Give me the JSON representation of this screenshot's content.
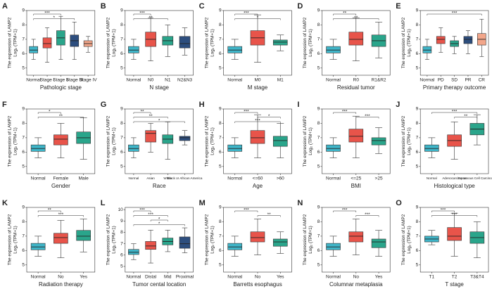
{
  "chart_data": [
    {
      "type": "box",
      "panel": "A",
      "x_label": "Pathologic stage",
      "y_label": [
        "The expression of LAMP2",
        "Log₂ (TPM+1)"
      ],
      "ylim": [
        4.5,
        9
      ],
      "yticks": [
        5,
        6,
        7,
        8,
        9
      ],
      "categories": [
        "Normal",
        "Stage I",
        "Stage II",
        "Stage III",
        "Stage IV"
      ],
      "boxes": [
        {
          "color": "#3fb5c8",
          "low": 5.6,
          "q1": 6.05,
          "median": 6.25,
          "q3": 6.5,
          "high": 7.0
        },
        {
          "color": "#e8544a",
          "low": 5.4,
          "q1": 6.4,
          "median": 6.7,
          "q3": 7.1,
          "high": 7.8
        },
        {
          "color": "#2aa58b",
          "low": 5.6,
          "q1": 6.6,
          "median": 7.1,
          "q3": 7.6,
          "high": 8.6
        },
        {
          "color": "#2d4e7e",
          "low": 5.6,
          "q1": 6.5,
          "median": 6.9,
          "q3": 7.3,
          "high": 8.2
        },
        {
          "color": "#f2a68a",
          "low": 6.1,
          "q1": 6.5,
          "median": 6.7,
          "q3": 6.9,
          "high": 7.2
        }
      ],
      "significance": [
        {
          "from": 0,
          "to": 2,
          "label": "***"
        },
        {
          "from": 0,
          "to": 3,
          "label": "*"
        }
      ]
    },
    {
      "type": "box",
      "panel": "B",
      "x_label": "N stage",
      "y_label": [
        "The expression of LAMP2",
        "Log₂ (TPM+1)"
      ],
      "ylim": [
        4.5,
        9
      ],
      "yticks": [
        5,
        6,
        7,
        8,
        9
      ],
      "categories": [
        "Normal",
        "N0",
        "N1",
        "N2&N3"
      ],
      "boxes": [
        {
          "color": "#3fb5c8",
          "low": 5.6,
          "q1": 6.05,
          "median": 6.25,
          "q3": 6.5,
          "high": 7.0
        },
        {
          "color": "#e8544a",
          "low": 5.5,
          "q1": 6.5,
          "median": 7.0,
          "q3": 7.5,
          "high": 8.5
        },
        {
          "color": "#2aa58b",
          "low": 5.8,
          "q1": 6.6,
          "median": 6.9,
          "q3": 7.2,
          "high": 8.0
        },
        {
          "color": "#2d4e7e",
          "low": 5.9,
          "q1": 6.4,
          "median": 6.7,
          "q3": 7.2,
          "high": 7.8
        }
      ],
      "significance": [
        {
          "from": 0,
          "to": 1,
          "label": "***"
        },
        {
          "from": 0,
          "to": 2,
          "label": "**"
        }
      ]
    },
    {
      "type": "box",
      "panel": "C",
      "x_label": "M stage",
      "y_label": [
        "The expression of LAMP2",
        "Log₂ (TPM+1)"
      ],
      "ylim": [
        4.5,
        9
      ],
      "yticks": [
        5,
        6,
        7,
        8,
        9
      ],
      "categories": [
        "Normal",
        "M0",
        "M1"
      ],
      "boxes": [
        {
          "color": "#3fb5c8",
          "low": 5.6,
          "q1": 6.05,
          "median": 6.25,
          "q3": 6.5,
          "high": 7.0
        },
        {
          "color": "#e8544a",
          "low": 5.4,
          "q1": 6.6,
          "median": 7.1,
          "q3": 7.6,
          "high": 8.7
        },
        {
          "color": "#2aa58b",
          "low": 6.2,
          "q1": 6.6,
          "median": 6.8,
          "q3": 6.95,
          "high": 7.3
        }
      ],
      "significance": [
        {
          "from": 0,
          "to": 1,
          "label": "***"
        },
        {
          "from": 0,
          "to": 2,
          "label": "*"
        }
      ]
    },
    {
      "type": "box",
      "panel": "D",
      "x_label": "Residual tumor",
      "y_label": [
        "The expression of LAMP2",
        "Log₂ (TPM+1)"
      ],
      "ylim": [
        4.5,
        9
      ],
      "yticks": [
        5,
        6,
        7,
        8,
        9
      ],
      "categories": [
        "Normal",
        "R0",
        "R1&R2"
      ],
      "boxes": [
        {
          "color": "#3fb5c8",
          "low": 5.6,
          "q1": 6.05,
          "median": 6.25,
          "q3": 6.5,
          "high": 7.0
        },
        {
          "color": "#e8544a",
          "low": 5.5,
          "q1": 6.6,
          "median": 7.0,
          "q3": 7.5,
          "high": 8.5
        },
        {
          "color": "#2aa58b",
          "low": 5.7,
          "q1": 6.5,
          "median": 6.9,
          "q3": 7.3,
          "high": 8.2
        }
      ],
      "significance": [
        {
          "from": 0,
          "to": 1,
          "label": "**"
        },
        {
          "from": 0,
          "to": 2,
          "label": "**"
        }
      ]
    },
    {
      "type": "box",
      "panel": "E",
      "x_label": "Primary therapy outcome",
      "y_label": [
        "The expression of LAMP2",
        "Log₂ (TPM+1)"
      ],
      "ylim": [
        4.5,
        9
      ],
      "yticks": [
        5,
        6,
        7,
        8,
        9
      ],
      "categories": [
        "Normal",
        "PD",
        "SD",
        "PR",
        "CR"
      ],
      "boxes": [
        {
          "color": "#3fb5c8",
          "low": 5.6,
          "q1": 6.05,
          "median": 6.25,
          "q3": 6.5,
          "high": 7.0
        },
        {
          "color": "#e8544a",
          "low": 6.1,
          "q1": 6.7,
          "median": 7.0,
          "q3": 7.2,
          "high": 7.8
        },
        {
          "color": "#2aa58b",
          "low": 6.0,
          "q1": 6.5,
          "median": 6.7,
          "q3": 6.9,
          "high": 7.2
        },
        {
          "color": "#2d4e7e",
          "low": 6.0,
          "q1": 6.7,
          "median": 7.0,
          "q3": 7.2,
          "high": 7.6
        },
        {
          "color": "#f2a68a",
          "low": 5.8,
          "q1": 6.6,
          "median": 7.0,
          "q3": 7.4,
          "high": 8.4
        }
      ],
      "significance": [
        {
          "from": 0,
          "to": 4,
          "label": "***"
        }
      ]
    },
    {
      "type": "box",
      "panel": "F",
      "x_label": "Gender",
      "y_label": [
        "The expression of LAMP2",
        "Log₂ (TPM+1)"
      ],
      "ylim": [
        4.5,
        9
      ],
      "yticks": [
        5,
        6,
        7,
        8,
        9
      ],
      "categories": [
        "Normal",
        "Female",
        "Male"
      ],
      "boxes": [
        {
          "color": "#3fb5c8",
          "low": 5.6,
          "q1": 6.05,
          "median": 6.25,
          "q3": 6.5,
          "high": 7.0
        },
        {
          "color": "#e8544a",
          "low": 5.6,
          "q1": 6.5,
          "median": 6.9,
          "q3": 7.2,
          "high": 8.0
        },
        {
          "color": "#2aa58b",
          "low": 5.5,
          "q1": 6.6,
          "median": 7.0,
          "q3": 7.4,
          "high": 8.4
        }
      ],
      "significance": [
        {
          "from": 0,
          "to": 1,
          "label": "*"
        },
        {
          "from": 0,
          "to": 2,
          "label": "**"
        }
      ]
    },
    {
      "type": "box",
      "panel": "G",
      "x_label": "Race",
      "y_label": [
        "The expression of LAMP2",
        "Log₂ (TPM+1)"
      ],
      "ylim": [
        4.5,
        9
      ],
      "yticks": [
        5,
        6,
        7,
        8,
        9
      ],
      "categories": [
        "Normal",
        "Asian",
        "White",
        "Black or African America"
      ],
      "boxes": [
        {
          "color": "#3fb5c8",
          "low": 5.6,
          "q1": 6.05,
          "median": 6.25,
          "q3": 6.5,
          "high": 7.0
        },
        {
          "color": "#e8544a",
          "low": 6.0,
          "q1": 6.7,
          "median": 7.3,
          "q3": 7.5,
          "high": 8.0
        },
        {
          "color": "#2aa58b",
          "low": 5.5,
          "q1": 6.6,
          "median": 6.9,
          "q3": 7.2,
          "high": 8.1
        },
        {
          "color": "#2d4e7e",
          "low": 6.5,
          "q1": 6.8,
          "median": 7.0,
          "q3": 7.1,
          "high": 7.5
        }
      ],
      "significance": [
        {
          "from": 0,
          "to": 1,
          "label": "**"
        },
        {
          "from": 0,
          "to": 2,
          "label": "**"
        },
        {
          "from": 0,
          "to": 3,
          "label": "*"
        }
      ]
    },
    {
      "type": "box",
      "panel": "H",
      "x_label": "Age",
      "y_label": [
        "The expression of LAMP2",
        "Log₂ (TPM+1)"
      ],
      "ylim": [
        4.5,
        9
      ],
      "yticks": [
        5,
        6,
        7,
        8,
        9
      ],
      "categories": [
        "Normal",
        "<=60",
        ">60"
      ],
      "boxes": [
        {
          "color": "#3fb5c8",
          "low": 5.6,
          "q1": 6.05,
          "median": 6.25,
          "q3": 6.5,
          "high": 7.0
        },
        {
          "color": "#e8544a",
          "low": 5.6,
          "q1": 6.6,
          "median": 7.0,
          "q3": 7.5,
          "high": 8.6
        },
        {
          "color": "#2aa58b",
          "low": 5.6,
          "q1": 6.4,
          "median": 6.8,
          "q3": 7.1,
          "high": 8.0
        }
      ],
      "significance": [
        {
          "from": 0,
          "to": 1,
          "label": "***"
        },
        {
          "from": 1,
          "to": 2,
          "label": "*"
        },
        {
          "from": 0,
          "to": 2,
          "label": "***"
        }
      ]
    },
    {
      "type": "box",
      "panel": "I",
      "x_label": "BMI",
      "y_label": [
        "The expression of LAMP2",
        "Log₂ (TPM+1)"
      ],
      "ylim": [
        4.5,
        9
      ],
      "yticks": [
        5,
        6,
        7,
        8,
        9
      ],
      "categories": [
        "Normal",
        "<=25",
        ">25"
      ],
      "boxes": [
        {
          "color": "#3fb5c8",
          "low": 5.6,
          "q1": 6.05,
          "median": 6.25,
          "q3": 6.5,
          "high": 7.0
        },
        {
          "color": "#e8544a",
          "low": 5.6,
          "q1": 6.7,
          "median": 7.1,
          "q3": 7.6,
          "high": 8.5
        },
        {
          "color": "#2aa58b",
          "low": 5.9,
          "q1": 6.5,
          "median": 6.8,
          "q3": 7.0,
          "high": 7.7
        }
      ],
      "significance": [
        {
          "from": 0,
          "to": 1,
          "label": "***"
        },
        {
          "from": 1,
          "to": 2,
          "label": "***"
        }
      ]
    },
    {
      "type": "box",
      "panel": "J",
      "x_label": "Histological type",
      "y_label": [
        "The expression of LAMP2",
        "Log₂ (TPM+1)"
      ],
      "ylim": [
        4.5,
        9
      ],
      "yticks": [
        5,
        6,
        7,
        8,
        9
      ],
      "categories": [
        "Normal",
        "Adenocarcinoma",
        "Squamous Cell Carcinoma"
      ],
      "boxes": [
        {
          "color": "#3fb5c8",
          "low": 5.6,
          "q1": 6.05,
          "median": 6.25,
          "q3": 6.5,
          "high": 7.0
        },
        {
          "color": "#e8544a",
          "low": 5.5,
          "q1": 6.4,
          "median": 6.8,
          "q3": 7.2,
          "high": 8.1
        },
        {
          "color": "#2aa58b",
          "low": 6.5,
          "q1": 7.2,
          "median": 7.6,
          "q3": 8.0,
          "high": 8.6
        }
      ],
      "significance": [
        {
          "from": 0,
          "to": 2,
          "label": "***"
        },
        {
          "from": 1,
          "to": 2,
          "label": "**"
        }
      ]
    },
    {
      "type": "box",
      "panel": "K",
      "x_label": "Radiation therapy",
      "y_label": [
        "The expression of LAMP2",
        "Log₂ (TPM+1)"
      ],
      "ylim": [
        4.5,
        9
      ],
      "yticks": [
        5,
        6,
        7,
        8,
        9
      ],
      "categories": [
        "Normal",
        "No",
        "Yes"
      ],
      "boxes": [
        {
          "color": "#3fb5c8",
          "low": 5.6,
          "q1": 6.05,
          "median": 6.25,
          "q3": 6.5,
          "high": 7.0
        },
        {
          "color": "#e8544a",
          "low": 5.5,
          "q1": 6.5,
          "median": 6.9,
          "q3": 7.2,
          "high": 8.1
        },
        {
          "color": "#2aa58b",
          "low": 5.9,
          "q1": 6.7,
          "median": 7.0,
          "q3": 7.4,
          "high": 8.2
        }
      ],
      "significance": [
        {
          "from": 0,
          "to": 1,
          "label": "**"
        },
        {
          "from": 0,
          "to": 2,
          "label": "***"
        }
      ]
    },
    {
      "type": "box",
      "panel": "L",
      "x_label": "Tumor cental location",
      "y_label": [
        "The expression of LAMP2",
        "Log₂ (TPM+1)"
      ],
      "ylim": [
        4.5,
        10.2
      ],
      "yticks": [
        5,
        6,
        7,
        8,
        9,
        10
      ],
      "categories": [
        "Normal",
        "Distal",
        "Mid",
        "Proximal"
      ],
      "boxes": [
        {
          "color": "#3fb5c8",
          "low": 5.6,
          "q1": 6.05,
          "median": 6.25,
          "q3": 6.5,
          "high": 7.0
        },
        {
          "color": "#e8544a",
          "low": 5.3,
          "q1": 6.5,
          "median": 6.8,
          "q3": 7.2,
          "high": 8.2
        },
        {
          "color": "#2aa58b",
          "low": 6.3,
          "q1": 6.9,
          "median": 7.2,
          "q3": 7.5,
          "high": 8.2
        },
        {
          "color": "#2d4e7e",
          "low": 6.2,
          "q1": 6.6,
          "median": 7.0,
          "q3": 7.6,
          "high": 8.4
        }
      ],
      "significance": [
        {
          "from": 0,
          "to": 1,
          "label": "***"
        },
        {
          "from": 0,
          "to": 2,
          "label": "***"
        },
        {
          "from": 1,
          "to": 2,
          "label": "*"
        },
        {
          "from": 0,
          "to": 3,
          "label": "*"
        }
      ]
    },
    {
      "type": "box",
      "panel": "M",
      "x_label": "Barretts esophagus",
      "y_label": [
        "The expression of LAMP2",
        "Log₂ (TPM+1)"
      ],
      "ylim": [
        4.5,
        9
      ],
      "yticks": [
        5,
        6,
        7,
        8,
        9
      ],
      "categories": [
        "Normal",
        "No",
        "Yes"
      ],
      "boxes": [
        {
          "color": "#3fb5c8",
          "low": 5.6,
          "q1": 6.05,
          "median": 6.25,
          "q3": 6.5,
          "high": 7.0
        },
        {
          "color": "#e8544a",
          "low": 5.7,
          "q1": 6.6,
          "median": 6.9,
          "q3": 7.3,
          "high": 8.2
        },
        {
          "color": "#2aa58b",
          "low": 5.8,
          "q1": 6.3,
          "median": 6.6,
          "q3": 6.8,
          "high": 7.3
        }
      ],
      "significance": [
        {
          "from": 0,
          "to": 1,
          "label": "***"
        },
        {
          "from": 1,
          "to": 2,
          "label": "**"
        }
      ]
    },
    {
      "type": "box",
      "panel": "N",
      "x_label": "Columnar metaplasia",
      "y_label": [
        "The expression of LAMP2",
        "Log₂ (TPM+1)"
      ],
      "ylim": [
        4.5,
        9
      ],
      "yticks": [
        5,
        6,
        7,
        8,
        9
      ],
      "categories": [
        "Normal",
        "No",
        "Yes"
      ],
      "boxes": [
        {
          "color": "#3fb5c8",
          "low": 5.6,
          "q1": 6.05,
          "median": 6.25,
          "q3": 6.5,
          "high": 7.0
        },
        {
          "color": "#e8544a",
          "low": 5.7,
          "q1": 6.6,
          "median": 7.0,
          "q3": 7.3,
          "high": 8.2
        },
        {
          "color": "#2aa58b",
          "low": 5.6,
          "q1": 6.2,
          "median": 6.6,
          "q3": 6.8,
          "high": 7.4
        }
      ],
      "significance": [
        {
          "from": 0,
          "to": 1,
          "label": "***"
        },
        {
          "from": 1,
          "to": 2,
          "label": "***"
        }
      ]
    },
    {
      "type": "box",
      "panel": "O",
      "x_label": "T stage",
      "y_label": [
        "The expression of LAMP2",
        "Log₂ (TPM+1)"
      ],
      "ylim": [
        4.5,
        9
      ],
      "yticks": [
        5,
        6,
        7,
        8,
        9
      ],
      "categories": [
        "T1",
        "T2",
        "T3&T4"
      ],
      "boxes": [
        {
          "color": "#3fb5c8",
          "low": 6.4,
          "q1": 6.6,
          "median": 6.8,
          "q3": 7.0,
          "high": 7.4
        },
        {
          "color": "#e8544a",
          "low": 5.6,
          "q1": 6.7,
          "median": 7.0,
          "q3": 7.6,
          "high": 8.6
        },
        {
          "color": "#2aa58b",
          "low": 5.5,
          "q1": 6.5,
          "median": 6.9,
          "q3": 7.3,
          "high": 8.0
        }
      ],
      "significance": [
        {
          "from": 0,
          "to": 1,
          "label": "***"
        },
        {
          "from": 0,
          "to": 2,
          "label": "***"
        }
      ]
    }
  ]
}
